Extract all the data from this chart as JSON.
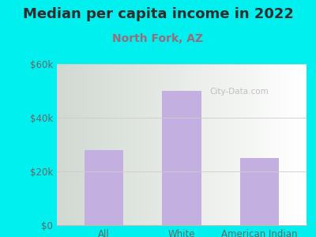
{
  "title": "Median per capita income in 2022",
  "subtitle": "North Fork, AZ",
  "categories": [
    "All",
    "White",
    "American Indian"
  ],
  "values": [
    28000,
    50000,
    25000
  ],
  "bar_color": "#c4b0e0",
  "title_color": "#2d2d2d",
  "subtitle_color": "#9b6b7a",
  "tick_color": "#666666",
  "background_outer": "#00f0f0",
  "ylim": [
    0,
    60000
  ],
  "yticks": [
    0,
    20000,
    40000,
    60000
  ],
  "ytick_labels": [
    "$0",
    "$20k",
    "$40k",
    "$60k"
  ],
  "watermark": "City-Data.com",
  "title_fontsize": 13,
  "subtitle_fontsize": 10,
  "bg_left_top": "#c8eac8",
  "bg_right_bottom": "#f8fff8"
}
